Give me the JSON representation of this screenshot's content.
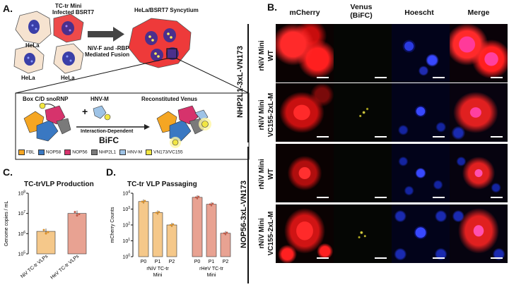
{
  "panelA": {
    "letter": "A.",
    "hela_labels": [
      "HeLa",
      "HeLa",
      "HeLa"
    ],
    "infected_label": [
      "TC-tr Mini",
      "Infected BSRT7"
    ],
    "syncytium_label": "HeLa/BSRT7 Syncytium",
    "fusion_label": [
      "NiV-F and -RBP",
      "Mediated Fusion"
    ],
    "box": {
      "snornp": "Box C/D snoRNP",
      "hnv": "HNV-M",
      "venus": "Reconstituted Venus",
      "interaction": "Interaction-Dependent",
      "bifc": "BiFC",
      "plus": "+",
      "legend": [
        {
          "label": "FBL",
          "color": "#f5a623"
        },
        {
          "label": "NOP58",
          "color": "#3a78c2"
        },
        {
          "label": "NOP56",
          "color": "#d6336c"
        },
        {
          "label": "NHP2L1",
          "color": "#7a7a7a"
        },
        {
          "label": "HNV-M",
          "color": "#9ec3e6"
        },
        {
          "label": "VN173/VC155",
          "color": "#f2e642"
        }
      ]
    }
  },
  "panelB": {
    "letter": "B.",
    "columns": [
      "mCherry",
      "Venus\n(BiFC)",
      "Hoescht",
      "Merge"
    ],
    "group_labels": [
      "NHP2L1-3xL-VN173",
      "NOP56-3xL-VN173"
    ],
    "row_labels": [
      "rNiV Mini\nWT",
      "rNiV Mini\nVC155-2xL-M",
      "rNiV Mini\nWT",
      "rNiV Mini\nVC155-2xL-M"
    ]
  },
  "panelC": {
    "letter": "C.",
    "title": "TC-trVLP Production",
    "ylabel": "Genome copies / mL",
    "yticks": [
      "10^5",
      "10^6",
      "10^7",
      "10^8"
    ]
  },
  "panelD": {
    "letter": "D.",
    "title": "TC-tr  VLP Passaging",
    "ylabel": "mCherry Counts",
    "yticks": [
      "10^0",
      "10^1",
      "10^2",
      "10^3",
      "10^4"
    ],
    "group_labels": [
      "rNiV  TC-tr\nMini",
      "rHeV  TC-tr\nMini"
    ]
  },
  "chart_data": [
    {
      "type": "bar",
      "title": "TC-trVLP Production",
      "ylabel": "Genome copies / mL",
      "yscale": "log",
      "ylim": [
        100000,
        100000000
      ],
      "categories": [
        "NiV TC-tr VLPs",
        "HeV TC-tr VLPs"
      ],
      "values": [
        1300000,
        10000000
      ],
      "colors": [
        "#f5c88a",
        "#e8a292"
      ]
    },
    {
      "type": "bar",
      "title": "TC-tr  VLP Passaging",
      "ylabel": "mCherry Counts",
      "yscale": "log",
      "ylim": [
        1,
        10000
      ],
      "categories": [
        "P0",
        "P1",
        "P2",
        "P0",
        "P1",
        "P2"
      ],
      "values": [
        3000,
        600,
        100,
        5500,
        2000,
        30
      ],
      "colors": [
        "#f5c88a",
        "#f5c88a",
        "#f5c88a",
        "#e8a292",
        "#e8a292",
        "#e8a292"
      ]
    }
  ]
}
